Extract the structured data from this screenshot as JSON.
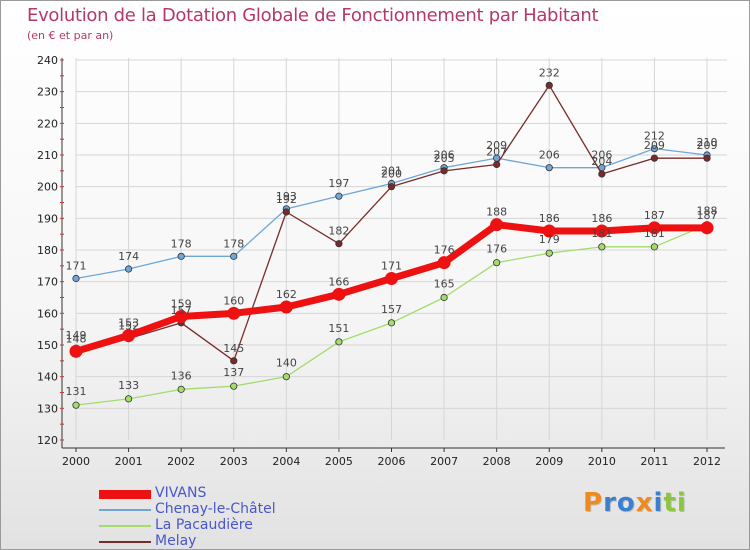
{
  "chart_data": {
    "type": "line",
    "title": "Evolution de la Dotation Globale de Fonctionnement par Habitant",
    "subtitle": "(en € et par an)",
    "xlabel": "",
    "ylabel": "",
    "x": [
      "2000",
      "2001",
      "2002",
      "2003",
      "2004",
      "2005",
      "2006",
      "2007",
      "2008",
      "2009",
      "2010",
      "2011",
      "2012"
    ],
    "ylim": [
      120,
      240
    ],
    "yticks": [
      "120",
      "130",
      "140",
      "150",
      "160",
      "170",
      "180",
      "190",
      "200",
      "210",
      "220",
      "230",
      "240"
    ],
    "grid": true,
    "legend_position": "bottom-left",
    "series": [
      {
        "name": "VIVANS",
        "color": "#ee1111",
        "values": [
          148,
          153,
          159,
          160,
          162,
          166,
          171,
          176,
          188,
          186,
          186,
          187,
          187
        ]
      },
      {
        "name": "Chenay-le-Châtel",
        "color": "#6fa6d6",
        "values": [
          171,
          174,
          178,
          178,
          193,
          197,
          201,
          206,
          209,
          206,
          206,
          212,
          210
        ]
      },
      {
        "name": "La Pacaudière",
        "color": "#a3dc6a",
        "values": [
          131,
          133,
          136,
          137,
          140,
          151,
          157,
          165,
          176,
          179,
          181,
          181,
          188
        ]
      },
      {
        "name": "Melay",
        "color": "#7a2a2a",
        "values": [
          149,
          152,
          157,
          145,
          192,
          182,
          200,
          205,
          207,
          232,
          204,
          209,
          209
        ]
      }
    ]
  },
  "logo": {
    "text": "Proxiti",
    "letters": [
      {
        "ch": "P",
        "color": "#f08a1c"
      },
      {
        "ch": "r",
        "color": "#3b7fd1"
      },
      {
        "ch": "o",
        "color": "#3b7fd1"
      },
      {
        "ch": "x",
        "color": "#f08a1c"
      },
      {
        "ch": "i",
        "color": "#3b7fd1"
      },
      {
        "ch": "t",
        "color": "#8cc63f"
      },
      {
        "ch": "i",
        "color": "#8cc63f"
      }
    ]
  }
}
